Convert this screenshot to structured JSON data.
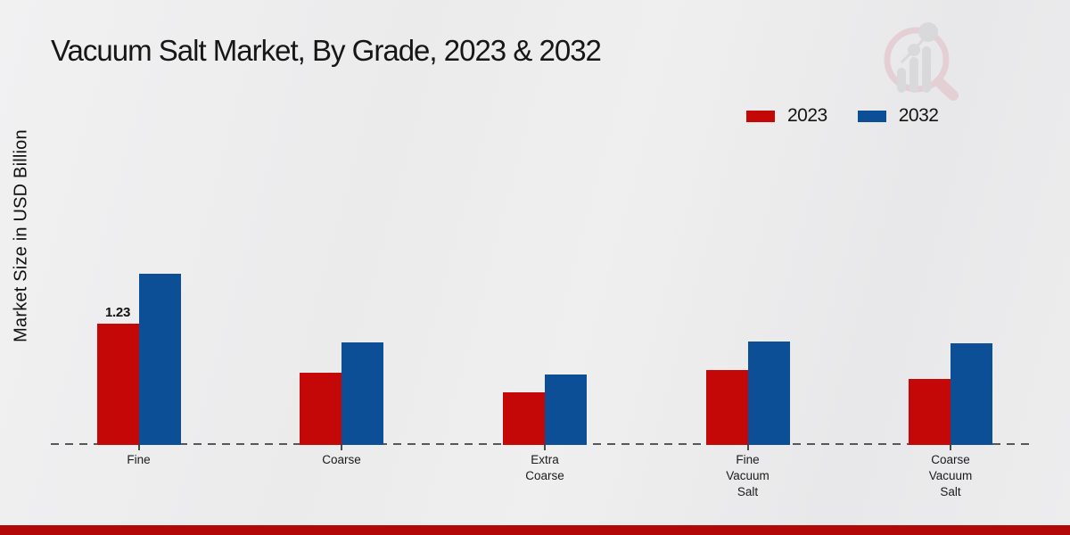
{
  "page": {
    "background_color": "#ededee",
    "footer_bar_color": "#b30808"
  },
  "header": {
    "title": "Vacuum Salt Market, By Grade, 2023 & 2032"
  },
  "logo": {
    "name": "market-research-watermark",
    "ring_color": "#dfb3ba",
    "bars_color": "#c6c6cb"
  },
  "legend": {
    "items": [
      {
        "label": "2023",
        "color": "#c40808"
      },
      {
        "label": "2032",
        "color": "#0d4f96"
      }
    ]
  },
  "chart_data": {
    "type": "bar",
    "title": "Vacuum Salt Market, By Grade, 2023 & 2032",
    "xlabel": "",
    "ylabel": "Market Size in USD Billion",
    "categories": [
      "Fine",
      "Coarse",
      "Extra Coarse",
      "Fine Vacuum Salt",
      "Coarse Vacuum Salt"
    ],
    "category_lines": [
      [
        "Fine"
      ],
      [
        "Coarse"
      ],
      [
        "Extra",
        "Coarse"
      ],
      [
        "Fine",
        "Vacuum",
        "Salt"
      ],
      [
        "Coarse",
        "Vacuum",
        "Salt"
      ]
    ],
    "series": [
      {
        "name": "2023",
        "color": "#c40808",
        "values": [
          1.23,
          0.73,
          0.53,
          0.76,
          0.67
        ]
      },
      {
        "name": "2032",
        "color": "#0d4f96",
        "values": [
          1.73,
          1.04,
          0.71,
          1.05,
          1.03
        ]
      }
    ],
    "bar_labels": [
      {
        "series": "2023",
        "category": "Fine",
        "text": "1.23"
      }
    ],
    "ylim": [
      0,
      2
    ],
    "grid": false,
    "axis_line_style": "dashed",
    "legend_position": "top-right"
  }
}
